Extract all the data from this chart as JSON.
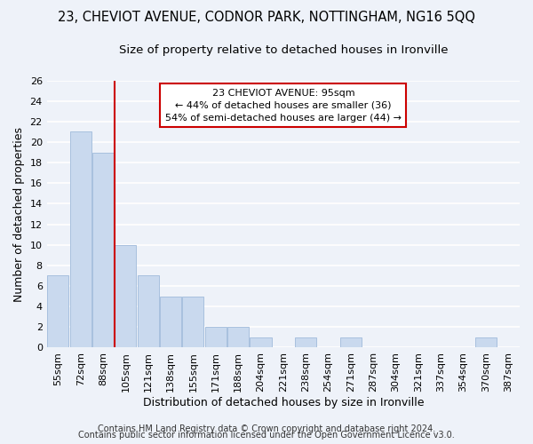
{
  "title": "23, CHEVIOT AVENUE, CODNOR PARK, NOTTINGHAM, NG16 5QQ",
  "subtitle": "Size of property relative to detached houses in Ironville",
  "xlabel": "Distribution of detached houses by size in Ironville",
  "ylabel": "Number of detached properties",
  "bins": [
    "55sqm",
    "72sqm",
    "88sqm",
    "105sqm",
    "121sqm",
    "138sqm",
    "155sqm",
    "171sqm",
    "188sqm",
    "204sqm",
    "221sqm",
    "238sqm",
    "254sqm",
    "271sqm",
    "287sqm",
    "304sqm",
    "321sqm",
    "337sqm",
    "354sqm",
    "370sqm",
    "387sqm"
  ],
  "values": [
    7,
    21,
    19,
    10,
    7,
    5,
    5,
    2,
    2,
    1,
    0,
    1,
    0,
    1,
    0,
    0,
    0,
    0,
    0,
    1,
    0
  ],
  "bar_color": "#c9d9ee",
  "bar_edgecolor": "#a8c0de",
  "annotation_title": "23 CHEVIOT AVENUE: 95sqm",
  "annotation_line1": "← 44% of detached houses are smaller (36)",
  "annotation_line2": "54% of semi-detached houses are larger (44) →",
  "annotation_box_color": "#ffffff",
  "annotation_box_edgecolor": "#cc0000",
  "red_line_color": "#cc0000",
  "ylim": [
    0,
    26
  ],
  "yticks": [
    0,
    2,
    4,
    6,
    8,
    10,
    12,
    14,
    16,
    18,
    20,
    22,
    24,
    26
  ],
  "footer1": "Contains HM Land Registry data © Crown copyright and database right 2024.",
  "footer2": "Contains public sector information licensed under the Open Government Licence v3.0.",
  "background_color": "#eef2f9",
  "grid_color": "#ffffff",
  "title_fontsize": 10.5,
  "subtitle_fontsize": 9.5,
  "axis_label_fontsize": 9,
  "tick_fontsize": 8,
  "annotation_fontsize": 8,
  "footer_fontsize": 7
}
